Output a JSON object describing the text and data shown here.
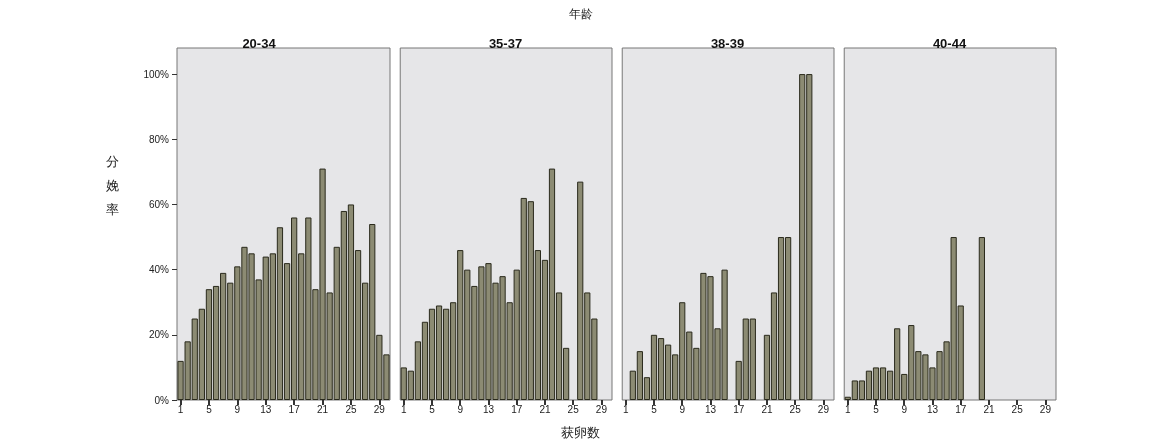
{
  "chart_data": [
    {
      "type": "bar",
      "title": "20-34",
      "annotations": [
        "年龄"
      ],
      "ylabel": "分娩率",
      "color": "#8c8b73",
      "ylim": [
        0,
        108
      ],
      "yticks": [
        {
          "value": 0,
          "label": "0%"
        },
        {
          "value": 20,
          "label": "20%"
        },
        {
          "value": 40,
          "label": "40%"
        },
        {
          "value": 60,
          "label": "60%"
        },
        {
          "value": 80,
          "label": "80%"
        },
        {
          "value": 100,
          "label": "100%"
        }
      ],
      "categories": [
        "1",
        null,
        null,
        null,
        "5",
        null,
        null,
        null,
        "9",
        null,
        null,
        null,
        "13",
        null,
        null,
        null,
        "17",
        null,
        null,
        null,
        "21",
        null,
        null,
        null,
        "25",
        null,
        null,
        null,
        "29",
        null
      ],
      "values": [
        12,
        18,
        25,
        28,
        34,
        35,
        39,
        36,
        41,
        47,
        45,
        37,
        44,
        45,
        53,
        42,
        56,
        45,
        56,
        34,
        71,
        33,
        47,
        58,
        60,
        46,
        36,
        54,
        20,
        14
      ]
    },
    {
      "type": "bar",
      "title": "35-37",
      "xlabel": "获卵数",
      "tick_labels": "x",
      "color": "#8c8b73",
      "ylim": [
        0,
        108
      ],
      "categories": [
        "1",
        null,
        null,
        null,
        "5",
        null,
        null,
        null,
        "9",
        null,
        null,
        null,
        "13",
        null,
        null,
        null,
        "17",
        null,
        null,
        null,
        "21",
        null,
        null,
        null,
        "25",
        null,
        null,
        null,
        "29",
        null
      ],
      "values": [
        10,
        9,
        18,
        24,
        28,
        29,
        28,
        30,
        46,
        40,
        35,
        41,
        42,
        36,
        38,
        30,
        40,
        62,
        61,
        46,
        43,
        71,
        33,
        16,
        null,
        67,
        33,
        25,
        null,
        null
      ]
    },
    {
      "type": "bar",
      "title": "38-39",
      "tick_labels": "x",
      "color": "#8c8b73",
      "ylim": [
        0,
        108
      ],
      "categories": [
        "1",
        null,
        null,
        null,
        "5",
        null,
        null,
        null,
        "9",
        null,
        null,
        null,
        "13",
        null,
        null,
        null,
        "17",
        null,
        null,
        null,
        "21",
        null,
        null,
        null,
        "25",
        null,
        null,
        null,
        "29",
        null
      ],
      "values": [
        null,
        9,
        15,
        7,
        20,
        19,
        17,
        14,
        30,
        21,
        16,
        39,
        38,
        22,
        40,
        null,
        12,
        25,
        25,
        null,
        20,
        33,
        50,
        50,
        null,
        100,
        100,
        null,
        null,
        null
      ]
    },
    {
      "type": "bar",
      "title": "40-44",
      "tick_labels": "x",
      "color": "#8c8b73",
      "ylim": [
        0,
        108
      ],
      "categories": [
        "1",
        null,
        null,
        null,
        "5",
        null,
        null,
        null,
        "9",
        null,
        null,
        null,
        "13",
        null,
        null,
        null,
        "17",
        null,
        null,
        null,
        "21",
        null,
        null,
        null,
        "25",
        null,
        null,
        null,
        "29",
        null
      ],
      "values": [
        1,
        6,
        6,
        9,
        10,
        10,
        9,
        22,
        8,
        23,
        15,
        14,
        10,
        15,
        18,
        50,
        29,
        null,
        null,
        50,
        null,
        null,
        null,
        null,
        null,
        null,
        null,
        null,
        null,
        null
      ]
    }
  ]
}
